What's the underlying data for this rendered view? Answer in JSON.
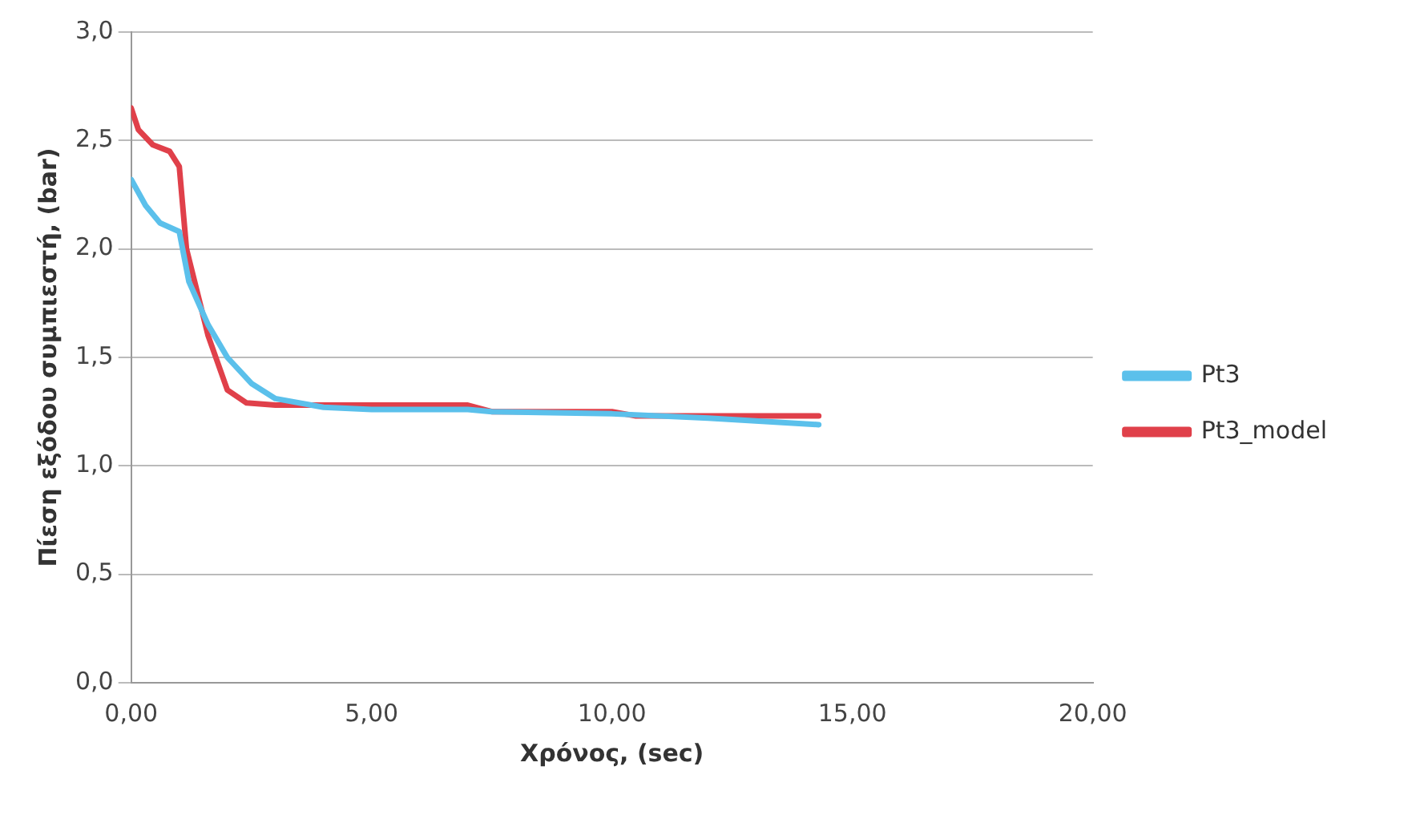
{
  "chart_data": {
    "type": "line",
    "xlabel": "Χρόνος, (sec)",
    "ylabel": "Πίεση εξόδου συμπιεστή, (bar)",
    "xlim": [
      0,
      20
    ],
    "xticks": [
      {
        "value": 0,
        "label": "0,00"
      },
      {
        "value": 5,
        "label": "5,00"
      },
      {
        "value": 10,
        "label": "10,00"
      },
      {
        "value": 15,
        "label": "15,00"
      },
      {
        "value": 20,
        "label": "20,00"
      }
    ],
    "ylim": [
      0,
      3
    ],
    "yticks": [
      {
        "value": 0,
        "label": "0,0"
      },
      {
        "value": 0.5,
        "label": "0,5"
      },
      {
        "value": 1,
        "label": "1,0"
      },
      {
        "value": 1.5,
        "label": "1,5"
      },
      {
        "value": 2,
        "label": "2,0"
      },
      {
        "value": 2.5,
        "label": "2,5"
      },
      {
        "value": 3,
        "label": "3,0"
      }
    ],
    "grid": "y",
    "legend": "right",
    "marker": "none",
    "line_style": "solid",
    "series": [
      {
        "name": "Pt3",
        "color": "#5bc0eb",
        "x": [
          0,
          0.3,
          0.6,
          1.0,
          1.2,
          1.6,
          2.0,
          2.5,
          3.0,
          4.0,
          5.0,
          7.0,
          7.5,
          10.0,
          12.0,
          14.3
        ],
        "values": [
          2.32,
          2.2,
          2.12,
          2.08,
          1.85,
          1.65,
          1.5,
          1.38,
          1.31,
          1.27,
          1.26,
          1.26,
          1.25,
          1.24,
          1.22,
          1.19
        ]
      },
      {
        "name": "Pt3_model",
        "color": "#e0404a",
        "x": [
          0,
          0.15,
          0.45,
          0.8,
          1.0,
          1.15,
          1.6,
          2.0,
          2.4,
          3.0,
          7.0,
          7.5,
          10.0,
          10.5,
          14.3
        ],
        "values": [
          2.65,
          2.55,
          2.48,
          2.45,
          2.38,
          2.0,
          1.6,
          1.35,
          1.29,
          1.28,
          1.28,
          1.25,
          1.25,
          1.23,
          1.23
        ]
      }
    ]
  }
}
